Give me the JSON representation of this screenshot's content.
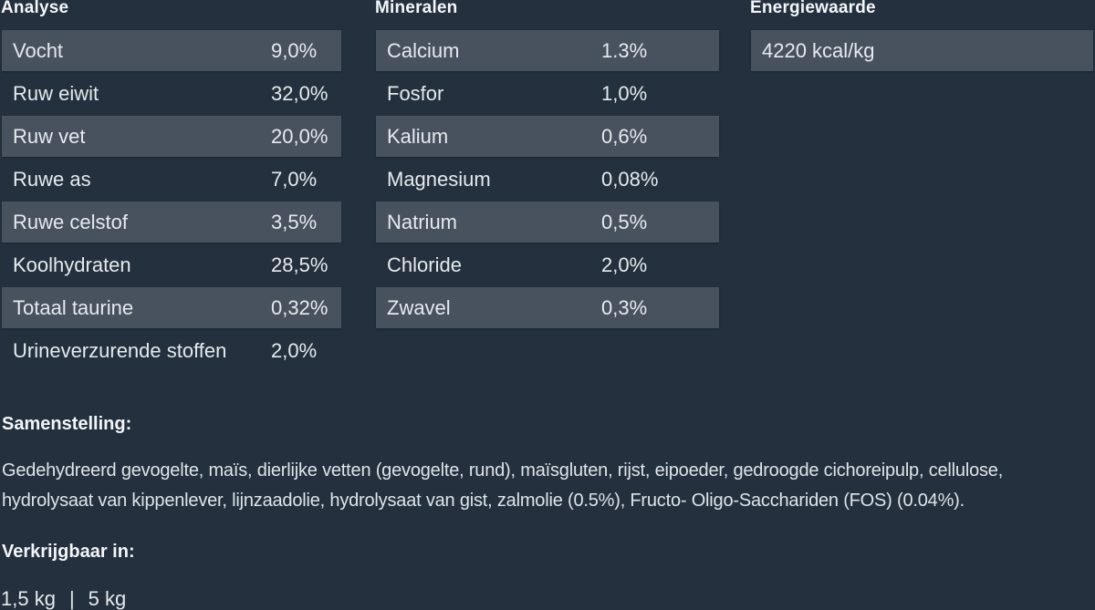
{
  "theme": {
    "background": "#24303D",
    "row_highlight": "#48525F",
    "heading_text": "#F3F6F9",
    "row_text": "#E6EAEE",
    "body_text": "#DEE4EA"
  },
  "tables": [
    {
      "title": "Analyse",
      "rows": [
        {
          "label": "Vocht",
          "value": "9,0%"
        },
        {
          "label": "Ruw eiwit",
          "value": "32,0%"
        },
        {
          "label": "Ruw vet",
          "value": "20,0%"
        },
        {
          "label": "Ruwe as",
          "value": "7,0%"
        },
        {
          "label": "Ruwe celstof",
          "value": "3,5%"
        },
        {
          "label": "Koolhydraten",
          "value": "28,5%"
        },
        {
          "label": "Totaal taurine",
          "value": "0,32%"
        },
        {
          "label": "Urineverzurende stoffen",
          "value": "2,0%"
        }
      ]
    },
    {
      "title": "Mineralen",
      "rows": [
        {
          "label": "Calcium",
          "value": "1.3%"
        },
        {
          "label": "Fosfor",
          "value": "1,0%"
        },
        {
          "label": "Kalium",
          "value": "0,6%"
        },
        {
          "label": "Magnesium",
          "value": "0,08%"
        },
        {
          "label": "Natrium",
          "value": "0,5%"
        },
        {
          "label": "Chloride",
          "value": "2,0%"
        },
        {
          "label": "Zwavel",
          "value": "0,3%"
        }
      ]
    },
    {
      "title": "Energiewaarde",
      "rows": [
        {
          "label": "4220 kcal/kg",
          "value": ""
        }
      ]
    }
  ],
  "composition": {
    "heading": "Samenstelling:",
    "text": "Gedehydreerd gevogelte, maïs, dierlijke vetten (gevogelte, rund), maïsgluten, rijst, eipoeder, gedroogde cichoreipulp, cellulose, hydrolysaat van kippenlever, lijnzaadolie, hydrolysaat van gist, zalmolie (0.5%), Fructo- Oligo-Sacchariden (FOS) (0.04%)."
  },
  "availability": {
    "heading": "Verkrijgbaar in:",
    "sizes": [
      "1,5 kg",
      "5 kg"
    ],
    "separator": "|"
  }
}
